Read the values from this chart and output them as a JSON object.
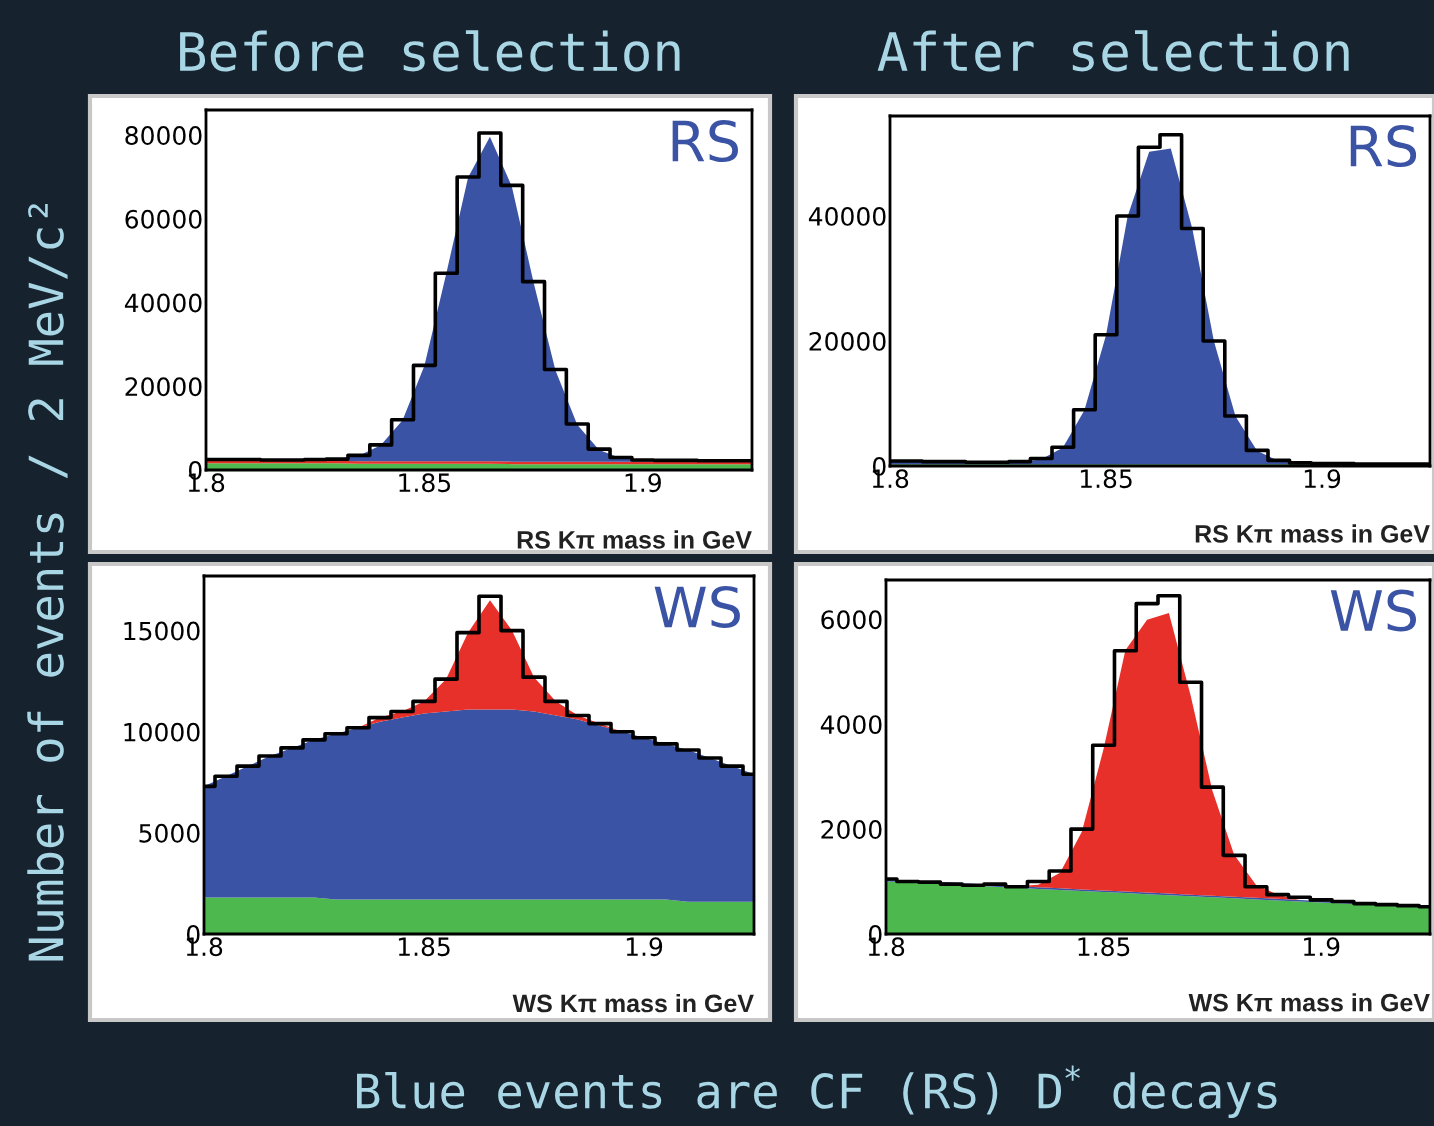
{
  "chart_data": [
    {
      "type": "area",
      "stacked": true,
      "title": "Before selection",
      "ylabel": "Number of events / 2 MeV/c²",
      "xlabel": "RS Kπ mass in GeV",
      "annotations": [
        "RS"
      ],
      "legend": false,
      "grid": false,
      "x": [
        1.8,
        1.805,
        1.81,
        1.815,
        1.82,
        1.825,
        1.83,
        1.835,
        1.84,
        1.845,
        1.85,
        1.855,
        1.86,
        1.865,
        1.87,
        1.875,
        1.88,
        1.885,
        1.89,
        1.895,
        1.9,
        1.905,
        1.91,
        1.915,
        1.92,
        1.925
      ],
      "xlim": [
        1.8,
        1.925
      ],
      "xticks": [
        1.8,
        1.85,
        1.9
      ],
      "ylim": [
        0,
        86000
      ],
      "yticks": [
        0,
        20000,
        40000,
        60000,
        80000
      ],
      "series": [
        {
          "color": "#4db84d",
          "values": [
            1600,
            1600,
            1600,
            1600,
            1600,
            1600,
            1600,
            1500,
            1500,
            1500,
            1500,
            1500,
            1500,
            1500,
            1400,
            1400,
            1400,
            1400,
            1400,
            1400,
            1400,
            1400,
            1400,
            1400,
            1400,
            1400
          ]
        },
        {
          "color": "#e8302a",
          "values": [
            600,
            600,
            600,
            600,
            600,
            600,
            600,
            600,
            600,
            600,
            600,
            600,
            600,
            600,
            600,
            600,
            600,
            600,
            600,
            600,
            600,
            600,
            600,
            600,
            600,
            600
          ]
        },
        {
          "color": "#3a53a4",
          "values": [
            300,
            300,
            300,
            300,
            300,
            400,
            500,
            1300,
            3800,
            9800,
            22800,
            44800,
            67800,
            77500,
            65800,
            42800,
            21800,
            8800,
            2800,
            800,
            300,
            200,
            200,
            200,
            200,
            200
          ]
        },
        {
          "type": "step",
          "color": "#000000",
          "values": [
            2500,
            2500,
            2500,
            2400,
            2400,
            2500,
            2600,
            3500,
            6000,
            12000,
            25000,
            47000,
            70000,
            80500,
            68000,
            45000,
            24000,
            11000,
            5000,
            3000,
            2400,
            2300,
            2300,
            2200,
            2200,
            2200
          ]
        }
      ]
    },
    {
      "type": "area",
      "stacked": true,
      "title": "After selection",
      "xlabel": "RS Kπ mass in GeV",
      "annotations": [
        "RS"
      ],
      "legend": false,
      "grid": false,
      "x": [
        1.8,
        1.805,
        1.81,
        1.815,
        1.82,
        1.825,
        1.83,
        1.835,
        1.84,
        1.845,
        1.85,
        1.855,
        1.86,
        1.865,
        1.87,
        1.875,
        1.88,
        1.885,
        1.89,
        1.895,
        1.9,
        1.905,
        1.91,
        1.915,
        1.92,
        1.925
      ],
      "xlim": [
        1.8,
        1.925
      ],
      "xticks": [
        1.8,
        1.85,
        1.9
      ],
      "ylim": [
        0,
        56000
      ],
      "yticks": [
        0,
        20000,
        40000
      ],
      "series": [
        {
          "color": "#4db84d",
          "values": [
            300,
            300,
            300,
            300,
            300,
            300,
            300,
            300,
            300,
            300,
            300,
            300,
            300,
            300,
            300,
            300,
            300,
            300,
            300,
            300,
            300,
            300,
            300,
            300,
            300,
            300
          ]
        },
        {
          "color": "#3a53a4",
          "values": [
            400,
            400,
            300,
            300,
            200,
            200,
            300,
            800,
            2600,
            8600,
            20600,
            39600,
            50000,
            50500,
            37600,
            19600,
            7600,
            2100,
            500,
            100,
            0,
            0,
            0,
            0,
            0,
            0
          ]
        },
        {
          "type": "step",
          "color": "#000000",
          "values": [
            800,
            800,
            700,
            700,
            600,
            600,
            700,
            1200,
            3000,
            9000,
            21000,
            40000,
            51000,
            53000,
            38000,
            20000,
            8000,
            2500,
            900,
            500,
            400,
            400,
            300,
            300,
            300,
            300
          ]
        }
      ]
    },
    {
      "type": "area",
      "stacked": true,
      "xlabel": "WS Kπ mass in GeV",
      "annotations": [
        "WS"
      ],
      "legend": false,
      "grid": false,
      "x": [
        1.8,
        1.805,
        1.81,
        1.815,
        1.82,
        1.825,
        1.83,
        1.835,
        1.84,
        1.845,
        1.85,
        1.855,
        1.86,
        1.865,
        1.87,
        1.875,
        1.88,
        1.885,
        1.89,
        1.895,
        1.9,
        1.905,
        1.91,
        1.915,
        1.92,
        1.925
      ],
      "xlim": [
        1.8,
        1.925
      ],
      "xticks": [
        1.8,
        1.85,
        1.9
      ],
      "ylim": [
        0,
        17700
      ],
      "yticks": [
        0,
        5000,
        10000,
        15000
      ],
      "series": [
        {
          "color": "#4db84d",
          "values": [
            1800,
            1800,
            1800,
            1800,
            1800,
            1800,
            1700,
            1700,
            1700,
            1700,
            1700,
            1700,
            1700,
            1700,
            1700,
            1700,
            1700,
            1700,
            1700,
            1700,
            1700,
            1700,
            1600,
            1600,
            1600,
            1600
          ]
        },
        {
          "color": "#3a53a4",
          "values": [
            5500,
            6000,
            6500,
            7000,
            7400,
            7800,
            8200,
            8500,
            8800,
            9000,
            9200,
            9300,
            9400,
            9400,
            9400,
            9300,
            9100,
            8900,
            8600,
            8300,
            8000,
            7700,
            7500,
            7100,
            6700,
            6300
          ]
        },
        {
          "color": "#e8302a",
          "values": [
            0,
            0,
            0,
            0,
            0,
            0,
            0,
            0,
            200,
            300,
            600,
            1600,
            3800,
            5400,
            3900,
            1700,
            700,
            200,
            100,
            0,
            0,
            0,
            0,
            0,
            0,
            0
          ]
        },
        {
          "type": "step",
          "color": "#000000",
          "values": [
            7300,
            7800,
            8300,
            8800,
            9200,
            9600,
            9900,
            10200,
            10700,
            11000,
            11500,
            12600,
            14900,
            16700,
            15000,
            12700,
            11500,
            10800,
            10400,
            10000,
            9700,
            9400,
            9100,
            8700,
            8300,
            7900
          ]
        }
      ]
    },
    {
      "type": "area",
      "stacked": true,
      "xlabel": "WS Kπ mass in GeV",
      "annotations": [
        "WS",
        "Blue events are CF (RS) D$^{*}$ decays"
      ],
      "legend": false,
      "grid": false,
      "x": [
        1.8,
        1.805,
        1.81,
        1.815,
        1.82,
        1.825,
        1.83,
        1.835,
        1.84,
        1.845,
        1.85,
        1.855,
        1.86,
        1.865,
        1.87,
        1.875,
        1.88,
        1.885,
        1.89,
        1.895,
        1.9,
        1.905,
        1.91,
        1.915,
        1.92,
        1.925
      ],
      "xlim": [
        1.8,
        1.925
      ],
      "xticks": [
        1.8,
        1.85,
        1.9
      ],
      "ylim": [
        0,
        6750
      ],
      "yticks": [
        0,
        2000,
        4000,
        6000
      ],
      "series": [
        {
          "color": "#4db84d",
          "values": [
            1000,
            990,
            970,
            950,
            930,
            900,
            880,
            860,
            840,
            820,
            800,
            780,
            760,
            740,
            720,
            700,
            680,
            660,
            640,
            620,
            600,
            580,
            560,
            540,
            520,
            500
          ]
        },
        {
          "color": "#3a53a4",
          "values": [
            30,
            30,
            30,
            30,
            30,
            30,
            30,
            30,
            30,
            30,
            30,
            30,
            30,
            30,
            30,
            30,
            30,
            30,
            30,
            30,
            30,
            30,
            30,
            30,
            30,
            30
          ]
        },
        {
          "color": "#e8302a",
          "values": [
            0,
            0,
            0,
            0,
            0,
            0,
            0,
            50,
            300,
            1100,
            2700,
            4600,
            5200,
            5350,
            3800,
            2000,
            800,
            250,
            80,
            0,
            0,
            0,
            0,
            0,
            0,
            0
          ]
        },
        {
          "type": "step",
          "color": "#000000",
          "values": [
            1050,
            1000,
            990,
            950,
            930,
            950,
            900,
            1000,
            1200,
            2000,
            3600,
            5400,
            6300,
            6450,
            4800,
            2800,
            1500,
            900,
            750,
            700,
            650,
            620,
            580,
            560,
            540,
            520
          ]
        }
      ]
    }
  ]
}
